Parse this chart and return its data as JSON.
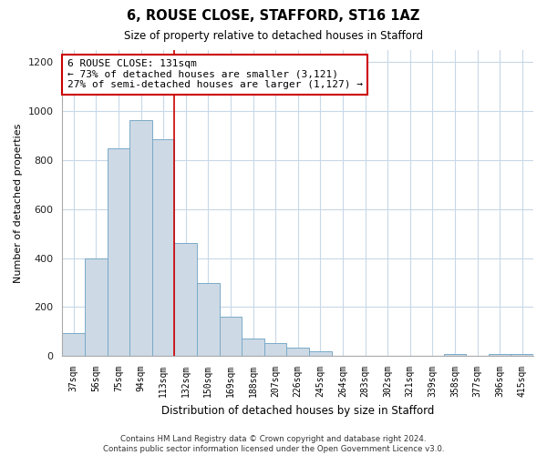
{
  "title1": "6, ROUSE CLOSE, STAFFORD, ST16 1AZ",
  "title2": "Size of property relative to detached houses in Stafford",
  "xlabel": "Distribution of detached houses by size in Stafford",
  "ylabel": "Number of detached properties",
  "categories": [
    "37sqm",
    "56sqm",
    "75sqm",
    "94sqm",
    "113sqm",
    "132sqm",
    "150sqm",
    "169sqm",
    "188sqm",
    "207sqm",
    "226sqm",
    "245sqm",
    "264sqm",
    "283sqm",
    "302sqm",
    "321sqm",
    "339sqm",
    "358sqm",
    "377sqm",
    "396sqm",
    "415sqm"
  ],
  "values": [
    95,
    400,
    848,
    963,
    886,
    460,
    298,
    160,
    72,
    52,
    35,
    20,
    0,
    0,
    0,
    0,
    0,
    10,
    0,
    10,
    10
  ],
  "bar_color": "#cdd9e5",
  "bar_edge_color": "#7aaac8",
  "reference_line_color": "#cc0000",
  "annotation_box_text": "6 ROUSE CLOSE: 131sqm\n← 73% of detached houses are smaller (3,121)\n27% of semi-detached houses are larger (1,127) →",
  "annotation_box_color": "#cc0000",
  "ylim": [
    0,
    1250
  ],
  "yticks": [
    0,
    200,
    400,
    600,
    800,
    1000,
    1200
  ],
  "footer": "Contains HM Land Registry data © Crown copyright and database right 2024.\nContains public sector information licensed under the Open Government Licence v3.0.",
  "bg_color": "#ffffff",
  "grid_color": "#c8d8e8"
}
